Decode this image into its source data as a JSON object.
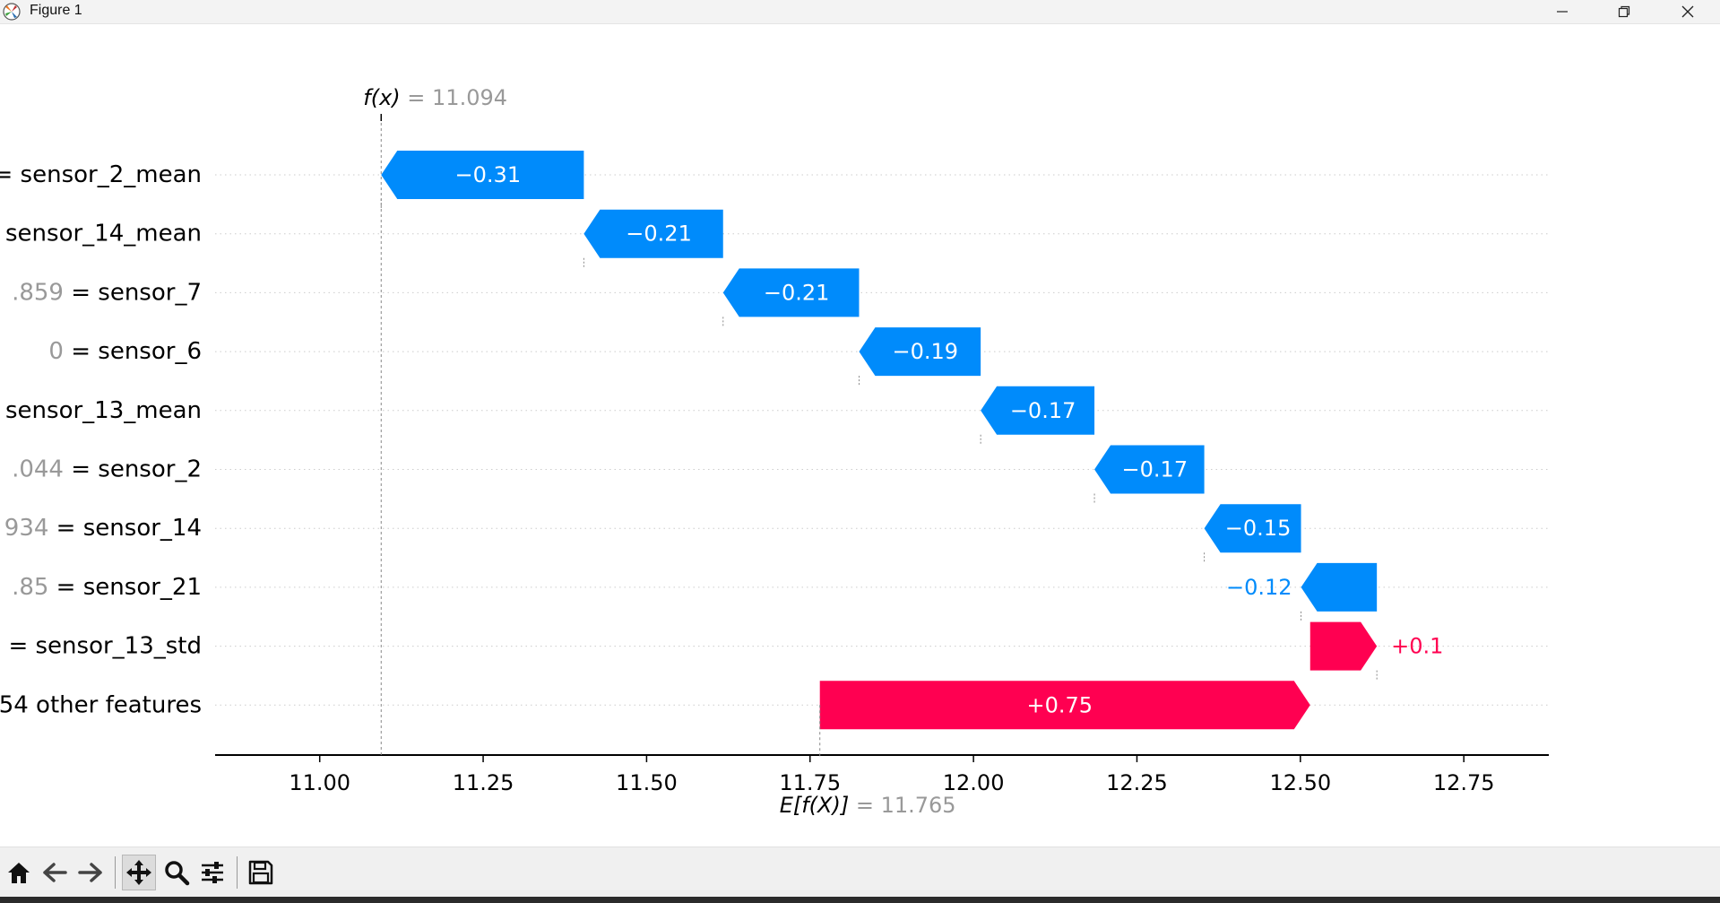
{
  "window": {
    "title": "Figure 1"
  },
  "icons": {
    "app": "matplotlib-icon",
    "minimize": "minimize-icon",
    "maximize": "restore-icon",
    "close": "close-icon",
    "home": "home-icon",
    "back": "back-arrow-icon",
    "forward": "forward-arrow-icon",
    "pan": "pan-move-icon",
    "zoom": "zoom-magnifier-icon",
    "configure": "configure-subplots-icon",
    "save": "save-floppy-icon"
  },
  "colors": {
    "negative": "#008bfb",
    "positive": "#ff0051",
    "value_text": "#999999"
  },
  "chart_data": {
    "type": "waterfall",
    "fx_label": "f(x)",
    "fx_value": 11.094,
    "fx_value_text": "= 11.094",
    "efx_label": "E[f(X)]",
    "efx_value": 11.765,
    "efx_value_text": "= 11.765",
    "xlim": [
      10.84,
      12.88
    ],
    "xticks": [
      11.0,
      11.25,
      11.5,
      11.75,
      12.0,
      12.25,
      12.5,
      12.75
    ],
    "xtick_labels": [
      "11.00",
      "11.25",
      "11.50",
      "11.75",
      "12.00",
      "12.25",
      "12.50",
      "12.75"
    ],
    "grid": "horizontal-dotted",
    "features": [
      {
        "value_text": "",
        "eq": "= ",
        "name": "sensor_2_mean",
        "shap": -0.31,
        "label": "−0.31",
        "start": 11.404,
        "end": 11.094
      },
      {
        "value_text": "",
        "eq": "",
        "name": "sensor_14_mean",
        "shap": -0.21,
        "label": "−0.21",
        "start": 11.617,
        "end": 11.404
      },
      {
        "value_text": ".859",
        "eq": " = ",
        "name": "sensor_7",
        "shap": -0.21,
        "label": "−0.21",
        "start": 11.825,
        "end": 11.617
      },
      {
        "value_text": "0",
        "eq": " = ",
        "name": "sensor_6",
        "shap": -0.19,
        "label": "−0.19",
        "start": 12.011,
        "end": 11.825
      },
      {
        "value_text": "",
        "eq": "",
        "name": "sensor_13_mean",
        "shap": -0.17,
        "label": "−0.17",
        "start": 12.185,
        "end": 12.011
      },
      {
        "value_text": ".044",
        "eq": " = ",
        "name": "sensor_2",
        "shap": -0.17,
        "label": "−0.17",
        "start": 12.353,
        "end": 12.185
      },
      {
        "value_text": "934",
        "eq": " = ",
        "name": "sensor_14",
        "shap": -0.15,
        "label": "−0.15",
        "start": 12.501,
        "end": 12.353
      },
      {
        "value_text": ".85",
        "eq": " = ",
        "name": "sensor_21",
        "shap": -0.12,
        "label": "−0.12",
        "start": 12.617,
        "end": 12.501
      },
      {
        "value_text": "",
        "eq": "= ",
        "name": "sensor_13_std",
        "shap": 0.1,
        "label": "+0.1",
        "start": 12.515,
        "end": 12.617
      },
      {
        "value_text": "",
        "eq": "",
        "name": "54 other features",
        "shap": 0.75,
        "label": "+0.75",
        "start": 11.765,
        "end": 12.515
      }
    ]
  }
}
